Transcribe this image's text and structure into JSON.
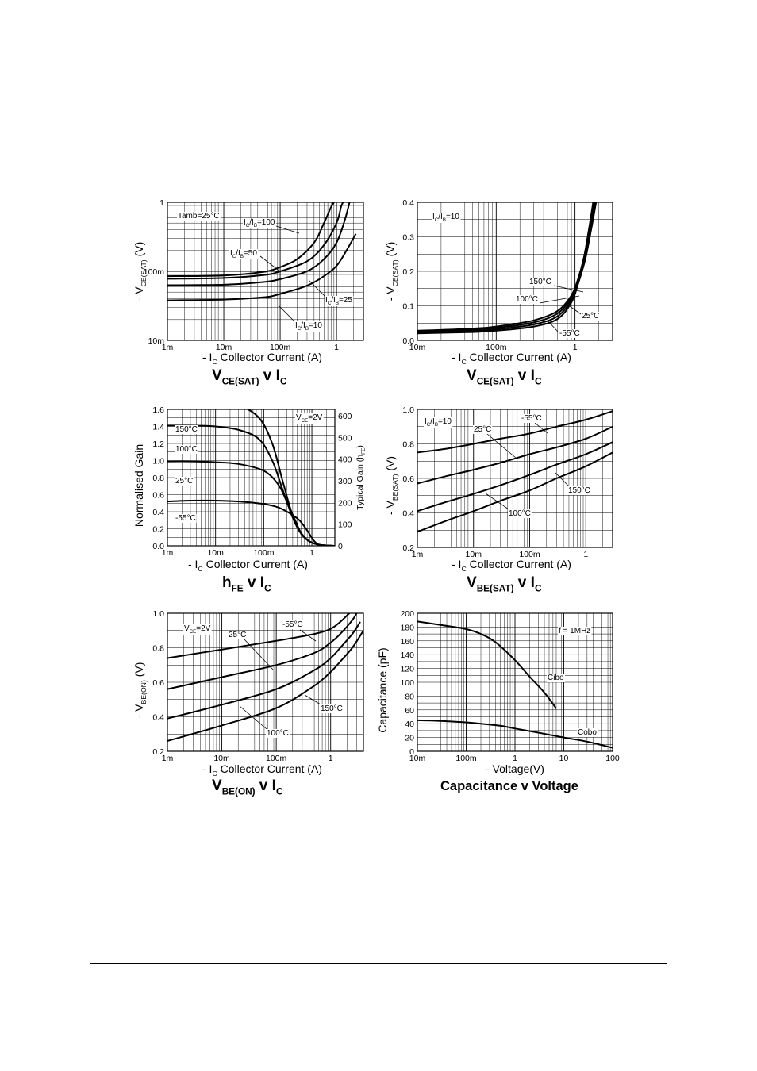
{
  "charts": [
    {
      "type": "line",
      "xlabel_main": "- I",
      "xlabel_sub": "C",
      "xlabel_rest": "Collector Current (A)",
      "ylabel_main": "- V",
      "ylabel_sub": "CE(SAT)",
      "ylabel_rest": "(V)",
      "caption_main": "V",
      "caption_sub": "CE(SAT)",
      "caption_mid": "v I",
      "caption_sub2": "C",
      "x_scale": "log",
      "y_scale": "log",
      "xlim": [
        0.001,
        3
      ],
      "ylim": [
        0.01,
        1
      ],
      "x_ticks": [
        {
          "v": 0.001,
          "t": "1m"
        },
        {
          "v": 0.01,
          "t": "10m"
        },
        {
          "v": 0.1,
          "t": "100m"
        },
        {
          "v": 1,
          "t": "1"
        }
      ],
      "y_ticks": [
        {
          "v": 0.01,
          "t": "10m"
        },
        {
          "v": 0.1,
          "t": "100m"
        },
        {
          "v": 1,
          "t": "1"
        }
      ],
      "annotations": [
        {
          "t": "Tamb=25°C"
        },
        {
          "t": "I",
          "s": "C",
          "m": "/I",
          "s2": "B",
          "e": "=100"
        },
        {
          "t": "I",
          "s": "C",
          "m": "/I",
          "s2": "B",
          "e": "=50"
        },
        {
          "t": "I",
          "s": "C",
          "m": "/I",
          "s2": "B",
          "e": "=25"
        },
        {
          "t": "I",
          "s": "C",
          "m": "/I",
          "s2": "B",
          "e": "=10"
        }
      ],
      "series": [
        {
          "x": [
            0.001,
            0.01,
            0.05,
            0.1,
            0.2,
            0.4,
            0.6,
            0.8,
            0.9
          ],
          "y": [
            0.085,
            0.087,
            0.098,
            0.115,
            0.15,
            0.26,
            0.5,
            0.85,
            1.0
          ]
        },
        {
          "x": [
            0.001,
            0.01,
            0.05,
            0.1,
            0.3,
            0.6,
            1.0,
            1.2,
            1.3
          ],
          "y": [
            0.078,
            0.08,
            0.088,
            0.1,
            0.14,
            0.24,
            0.5,
            0.85,
            1.0
          ]
        },
        {
          "x": [
            0.001,
            0.01,
            0.05,
            0.1,
            0.3,
            0.6,
            1.0,
            1.4,
            1.7
          ],
          "y": [
            0.063,
            0.064,
            0.07,
            0.077,
            0.1,
            0.15,
            0.26,
            0.55,
            1.0
          ]
        },
        {
          "x": [
            0.001,
            0.01,
            0.05,
            0.1,
            0.3,
            0.6,
            1.0,
            1.5,
            2.2
          ],
          "y": [
            0.038,
            0.039,
            0.042,
            0.047,
            0.062,
            0.085,
            0.12,
            0.2,
            0.35
          ]
        }
      ]
    },
    {
      "type": "line",
      "xlabel_main": "- I",
      "xlabel_sub": "C",
      "xlabel_rest": "Collector Current (A)",
      "ylabel_main": "- V",
      "ylabel_sub": "CE(SAT)",
      "ylabel_rest": "(V)",
      "caption_main": "V",
      "caption_sub": "CE(SAT)",
      "caption_mid": "v I",
      "caption_sub2": "C",
      "x_scale": "log",
      "y_scale": "linear",
      "xlim": [
        0.01,
        3
      ],
      "ylim": [
        0,
        0.4
      ],
      "x_ticks": [
        {
          "v": 0.01,
          "t": "10m"
        },
        {
          "v": 0.1,
          "t": "100m"
        },
        {
          "v": 1,
          "t": "1"
        }
      ],
      "y_ticks": [
        {
          "v": 0,
          "t": "0.0"
        },
        {
          "v": 0.1,
          "t": "0.1"
        },
        {
          "v": 0.2,
          "t": "0.2"
        },
        {
          "v": 0.3,
          "t": "0.3"
        },
        {
          "v": 0.4,
          "t": "0.4"
        }
      ],
      "annotations": [
        {
          "t": "I",
          "s": "C",
          "m": "/I",
          "s2": "B",
          "e": "=10"
        },
        {
          "t": "150°C"
        },
        {
          "t": "100°C"
        },
        {
          "t": "25°C"
        },
        {
          "t": "-55°C"
        }
      ],
      "series": [
        {
          "x": [
            0.01,
            0.05,
            0.1,
            0.3,
            0.6,
            0.9,
            1.1,
            1.3,
            1.5,
            1.7
          ],
          "y": [
            0.028,
            0.034,
            0.04,
            0.058,
            0.085,
            0.13,
            0.18,
            0.24,
            0.32,
            0.4
          ]
        },
        {
          "x": [
            0.01,
            0.05,
            0.1,
            0.3,
            0.6,
            0.9,
            1.1,
            1.3,
            1.5,
            1.75
          ],
          "y": [
            0.025,
            0.031,
            0.036,
            0.052,
            0.078,
            0.125,
            0.178,
            0.24,
            0.32,
            0.4
          ]
        },
        {
          "x": [
            0.01,
            0.05,
            0.1,
            0.3,
            0.6,
            0.9,
            1.1,
            1.3,
            1.55,
            1.8
          ],
          "y": [
            0.022,
            0.027,
            0.032,
            0.046,
            0.07,
            0.118,
            0.172,
            0.236,
            0.32,
            0.4
          ]
        },
        {
          "x": [
            0.01,
            0.05,
            0.1,
            0.3,
            0.6,
            0.9,
            1.1,
            1.35,
            1.6,
            1.85
          ],
          "y": [
            0.02,
            0.024,
            0.028,
            0.04,
            0.062,
            0.11,
            0.165,
            0.235,
            0.32,
            0.4
          ]
        }
      ]
    },
    {
      "type": "line",
      "xlabel_main": "- I",
      "xlabel_sub": "C",
      "xlabel_rest": "Collector Current (A)",
      "ylabel_main": "Normalised Gain",
      "ylabel_sub": "",
      "ylabel_rest": "",
      "y2label_main": "Typical Gain (h",
      "y2label_sub": "FE",
      "y2label_rest": ")",
      "caption_main": "h",
      "caption_sub": "FE",
      "caption_mid": "v I",
      "caption_sub2": "C",
      "x_scale": "log",
      "y_scale": "linear",
      "xlim": [
        0.001,
        3
      ],
      "ylim": [
        0,
        1.6
      ],
      "x_ticks": [
        {
          "v": 0.001,
          "t": "1m"
        },
        {
          "v": 0.01,
          "t": "10m"
        },
        {
          "v": 0.1,
          "t": "100m"
        },
        {
          "v": 1,
          "t": "1"
        }
      ],
      "y_ticks": [
        {
          "v": 0,
          "t": "0.0"
        },
        {
          "v": 0.2,
          "t": "0.2"
        },
        {
          "v": 0.4,
          "t": "0.4"
        },
        {
          "v": 0.6,
          "t": "0.6"
        },
        {
          "v": 0.8,
          "t": "0.8"
        },
        {
          "v": 1.0,
          "t": "1.0"
        },
        {
          "v": 1.2,
          "t": "1.2"
        },
        {
          "v": 1.4,
          "t": "1.4"
        },
        {
          "v": 1.6,
          "t": "1.6"
        }
      ],
      "y2_ticks": [
        {
          "t": "0"
        },
        {
          "t": "100"
        },
        {
          "t": "200"
        },
        {
          "t": "300"
        },
        {
          "t": "400"
        },
        {
          "t": "500"
        },
        {
          "t": "600"
        }
      ],
      "annotations": [
        {
          "t": "V",
          "s": "CE",
          "m": "=2V",
          "s2": "",
          "e": ""
        },
        {
          "t": "150°C"
        },
        {
          "t": "100°C"
        },
        {
          "t": "25°C"
        },
        {
          "t": "-55°C"
        }
      ],
      "series": [
        {
          "x": [
            0.001,
            0.003,
            0.01,
            0.03,
            0.08,
            0.15,
            0.25,
            0.4,
            0.6,
            0.9,
            1.5,
            3
          ],
          "y": [
            1.7,
            1.7,
            1.69,
            1.65,
            1.5,
            1.2,
            0.75,
            0.35,
            0.15,
            0.05,
            0.01,
            0
          ]
        },
        {
          "x": [
            0.001,
            0.003,
            0.01,
            0.03,
            0.08,
            0.15,
            0.25,
            0.4,
            0.6,
            0.9,
            1.5,
            3
          ],
          "y": [
            1.41,
            1.41,
            1.4,
            1.36,
            1.25,
            1.0,
            0.65,
            0.33,
            0.14,
            0.05,
            0.01,
            0
          ]
        },
        {
          "x": [
            0.001,
            0.003,
            0.01,
            0.03,
            0.1,
            0.2,
            0.3,
            0.45,
            0.6,
            0.9,
            1.5,
            3
          ],
          "y": [
            0.99,
            0.99,
            0.98,
            0.96,
            0.88,
            0.72,
            0.52,
            0.3,
            0.15,
            0.05,
            0.01,
            0
          ]
        },
        {
          "x": [
            0.001,
            0.003,
            0.01,
            0.03,
            0.1,
            0.2,
            0.35,
            0.55,
            0.8,
            1.1,
            1.5,
            3
          ],
          "y": [
            0.52,
            0.53,
            0.53,
            0.52,
            0.49,
            0.45,
            0.38,
            0.3,
            0.18,
            0.06,
            0.01,
            0
          ]
        }
      ]
    },
    {
      "type": "line",
      "xlabel_main": "- I",
      "xlabel_sub": "C",
      "xlabel_rest": "Collector Current (A)",
      "ylabel_main": "- V",
      "ylabel_sub": "BE(SAT)",
      "ylabel_rest": "(V)",
      "caption_main": "V",
      "caption_sub": "BE(SAT)",
      "caption_mid": "v I",
      "caption_sub2": "C",
      "x_scale": "log",
      "y_scale": "linear",
      "xlim": [
        0.001,
        3
      ],
      "ylim": [
        0.2,
        1.0
      ],
      "x_ticks": [
        {
          "v": 0.001,
          "t": "1m"
        },
        {
          "v": 0.01,
          "t": "10m"
        },
        {
          "v": 0.1,
          "t": "100m"
        },
        {
          "v": 1,
          "t": "1"
        }
      ],
      "y_ticks": [
        {
          "v": 0.2,
          "t": "0.2"
        },
        {
          "v": 0.4,
          "t": "0.4"
        },
        {
          "v": 0.6,
          "t": "0.6"
        },
        {
          "v": 0.8,
          "t": "0.8"
        },
        {
          "v": 1.0,
          "t": "1.0"
        }
      ],
      "annotations": [
        {
          "t": "I",
          "s": "C",
          "m": "/I",
          "s2": "B",
          "e": "=10"
        },
        {
          "t": "-55°C"
        },
        {
          "t": "25°C"
        },
        {
          "t": "150°C"
        },
        {
          "t": "100°C"
        }
      ],
      "series": [
        {
          "x": [
            0.001,
            0.003,
            0.01,
            0.03,
            0.1,
            0.3,
            1,
            3
          ],
          "y": [
            0.75,
            0.77,
            0.8,
            0.83,
            0.86,
            0.9,
            0.94,
            0.99
          ]
        },
        {
          "x": [
            0.001,
            0.003,
            0.01,
            0.03,
            0.1,
            0.3,
            1,
            3
          ],
          "y": [
            0.57,
            0.61,
            0.65,
            0.69,
            0.74,
            0.78,
            0.83,
            0.9
          ]
        },
        {
          "x": [
            0.001,
            0.003,
            0.01,
            0.03,
            0.1,
            0.3,
            1,
            3
          ],
          "y": [
            0.41,
            0.46,
            0.51,
            0.56,
            0.62,
            0.68,
            0.74,
            0.81
          ]
        },
        {
          "x": [
            0.001,
            0.003,
            0.01,
            0.03,
            0.1,
            0.3,
            1,
            3
          ],
          "y": [
            0.29,
            0.35,
            0.41,
            0.47,
            0.53,
            0.6,
            0.67,
            0.75
          ]
        }
      ]
    },
    {
      "type": "line",
      "xlabel_main": "- I",
      "xlabel_sub": "C",
      "xlabel_rest": "Collector Current (A)",
      "ylabel_main": "- V",
      "ylabel_sub": "BE(ON)",
      "ylabel_rest": "(V)",
      "caption_main": "V",
      "caption_sub": "BE(ON)",
      "caption_mid": "v I",
      "caption_sub2": "C",
      "x_scale": "log",
      "y_scale": "linear",
      "xlim": [
        0.001,
        4
      ],
      "ylim": [
        0.2,
        1.0
      ],
      "x_ticks": [
        {
          "v": 0.001,
          "t": "1m"
        },
        {
          "v": 0.01,
          "t": "10m"
        },
        {
          "v": 0.1,
          "t": "100m"
        },
        {
          "v": 1,
          "t": "1"
        }
      ],
      "y_ticks": [
        {
          "v": 0.2,
          "t": "0.2"
        },
        {
          "v": 0.4,
          "t": "0.4"
        },
        {
          "v": 0.6,
          "t": "0.6"
        },
        {
          "v": 0.8,
          "t": "0.8"
        },
        {
          "v": 1.0,
          "t": "1.0"
        }
      ],
      "annotations": [
        {
          "t": "V",
          "s": "CE",
          "m": "=2V",
          "s2": "",
          "e": ""
        },
        {
          "t": "-55°C"
        },
        {
          "t": "25°C"
        },
        {
          "t": "150°C"
        },
        {
          "t": "100°C"
        }
      ],
      "series": [
        {
          "x": [
            0.001,
            0.01,
            0.1,
            0.5,
            1,
            1.5,
            2.2
          ],
          "y": [
            0.74,
            0.79,
            0.84,
            0.88,
            0.91,
            0.95,
            1.0
          ]
        },
        {
          "x": [
            0.001,
            0.01,
            0.1,
            0.5,
            1,
            1.5,
            2.5,
            3
          ],
          "y": [
            0.56,
            0.63,
            0.7,
            0.77,
            0.83,
            0.88,
            0.96,
            1.0
          ]
        },
        {
          "x": [
            0.001,
            0.01,
            0.1,
            0.5,
            1,
            1.5,
            2.5,
            3.5
          ],
          "y": [
            0.39,
            0.47,
            0.56,
            0.67,
            0.74,
            0.8,
            0.88,
            0.95
          ]
        },
        {
          "x": [
            0.001,
            0.01,
            0.1,
            0.5,
            1,
            1.5,
            2.5,
            4
          ],
          "y": [
            0.26,
            0.35,
            0.45,
            0.58,
            0.66,
            0.72,
            0.8,
            0.9
          ]
        }
      ]
    },
    {
      "type": "line",
      "xlabel_main": "- Voltage(V)",
      "xlabel_sub": "",
      "xlabel_rest": "",
      "ylabel_main": "Capacitance (pF)",
      "ylabel_sub": "",
      "ylabel_rest": "",
      "caption_main": "Capacitance v Voltage",
      "caption_sub": "",
      "caption_mid": "",
      "caption_sub2": "",
      "x_scale": "log",
      "y_scale": "linear",
      "xlim": [
        0.01,
        100
      ],
      "ylim": [
        0,
        200
      ],
      "x_ticks": [
        {
          "v": 0.01,
          "t": "10m"
        },
        {
          "v": 0.1,
          "t": "100m"
        },
        {
          "v": 1,
          "t": "1"
        },
        {
          "v": 10,
          "t": "10"
        },
        {
          "v": 100,
          "t": "100"
        }
      ],
      "y_ticks": [
        {
          "v": 0,
          "t": "0"
        },
        {
          "v": 20,
          "t": "20"
        },
        {
          "v": 40,
          "t": "40"
        },
        {
          "v": 60,
          "t": "60"
        },
        {
          "v": 80,
          "t": "80"
        },
        {
          "v": 100,
          "t": "100"
        },
        {
          "v": 120,
          "t": "120"
        },
        {
          "v": 140,
          "t": "140"
        },
        {
          "v": 160,
          "t": "160"
        },
        {
          "v": 180,
          "t": "180"
        },
        {
          "v": 200,
          "t": "200"
        }
      ],
      "annotations": [
        {
          "t": "f = 1MHz"
        },
        {
          "t": "Cibo"
        },
        {
          "t": "Cobo"
        }
      ],
      "series": [
        {
          "name": "Cibo",
          "x": [
            0.01,
            0.03,
            0.1,
            0.2,
            0.4,
            1,
            2,
            4,
            7
          ],
          "y": [
            188,
            183,
            177,
            170,
            158,
            132,
            108,
            85,
            62
          ]
        },
        {
          "name": "Cobo",
          "x": [
            0.01,
            0.03,
            0.1,
            0.2,
            0.5,
            1,
            3,
            10,
            30,
            60,
            100
          ],
          "y": [
            45,
            44,
            42,
            40,
            37,
            33,
            27,
            20,
            14,
            9,
            5
          ]
        }
      ]
    }
  ]
}
